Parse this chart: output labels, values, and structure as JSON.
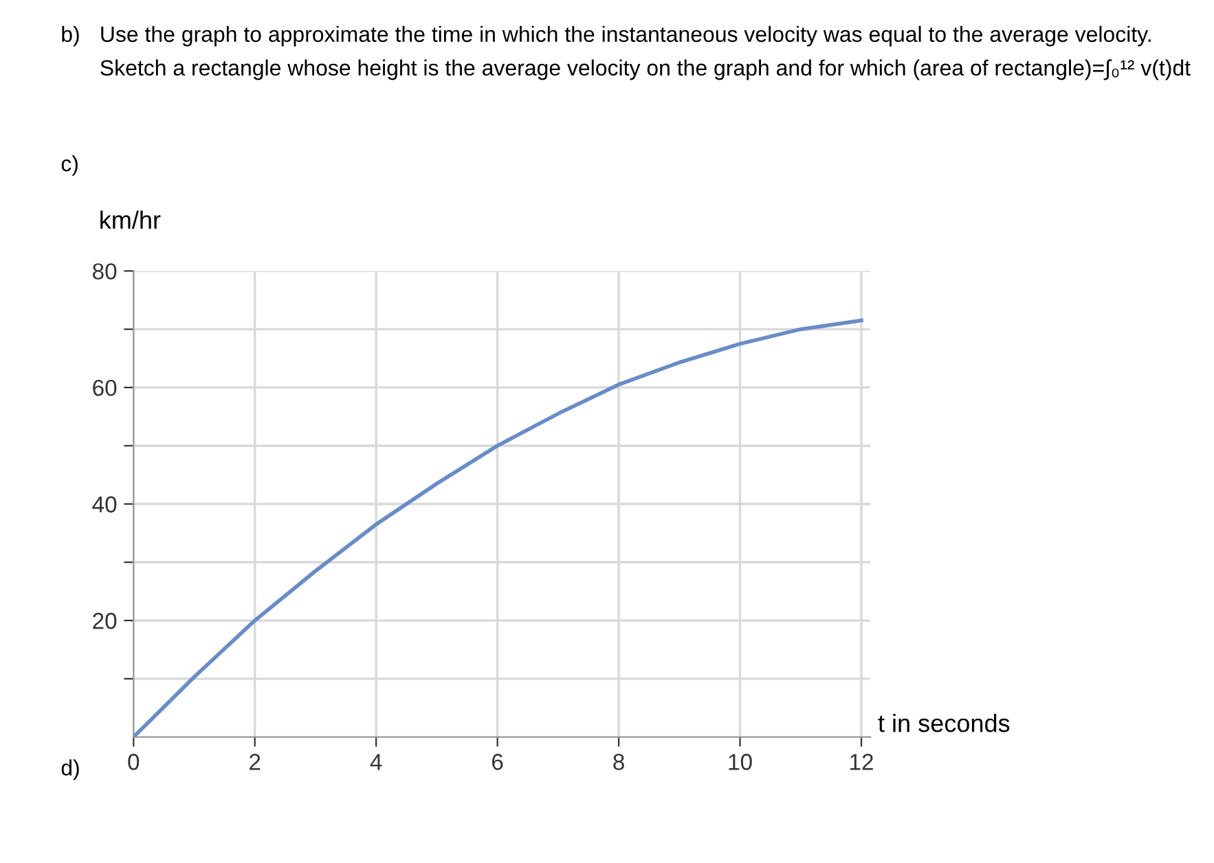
{
  "chart_data": {
    "type": "line",
    "title": "Use the graph to approximate the time in which the instantaneous velocity was equal to the average velocity. Sketch a rectangle whose height is the average velocity on the graph and for which (area of rectangle)=∫₀¹² v(t)dt",
    "annotations": [
      "b)",
      "c)",
      "d)"
    ],
    "xlabel": "t in seconds",
    "ylabel": "km/hr",
    "x": [
      0,
      1,
      2,
      3,
      4,
      5,
      6,
      7,
      8,
      9,
      10,
      11,
      12
    ],
    "series": [
      {
        "color": "#6a8cc6",
        "values": [
          0,
          10.3,
          20,
          28.5,
          36.5,
          43.5,
          50,
          55.5,
          60.5,
          64.3,
          67.5,
          70,
          71.5
        ]
      }
    ],
    "xlim": [
      0,
      12.15
    ],
    "ylim": [
      0,
      80
    ],
    "xticks": [
      0,
      2,
      4,
      6,
      8,
      10,
      12
    ],
    "yticks": [
      {
        "value": 10,
        "label": null
      },
      20,
      {
        "value": 30,
        "label": null
      },
      40,
      {
        "value": 50,
        "label": null
      },
      60,
      {
        "value": 70,
        "label": null
      },
      80
    ],
    "grid": true,
    "legend": false,
    "marker": "none",
    "line_style": "solid"
  }
}
